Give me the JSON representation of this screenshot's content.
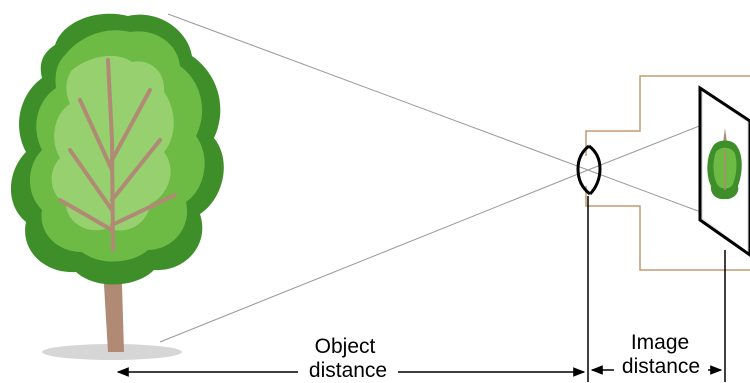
{
  "labels": {
    "object_distance_line1": "Object",
    "object_distance_line2": "distance",
    "image_distance_line1": "Image",
    "image_distance_line2": "distance"
  },
  "colors": {
    "ray": "#999999",
    "camera_body": "#c39b72",
    "lens": "#000000",
    "film": "#000000",
    "foliage_dark": "#3e8f2a",
    "foliage_mid": "#6dba45",
    "foliage_light": "#a6d77c",
    "trunk": "#b08a74",
    "shadow": "#d6d6d6"
  },
  "icons": {
    "tree": "tree-icon",
    "lens": "lens-icon",
    "film": "film-icon",
    "inverted_tree": "inverted-tree-icon"
  }
}
